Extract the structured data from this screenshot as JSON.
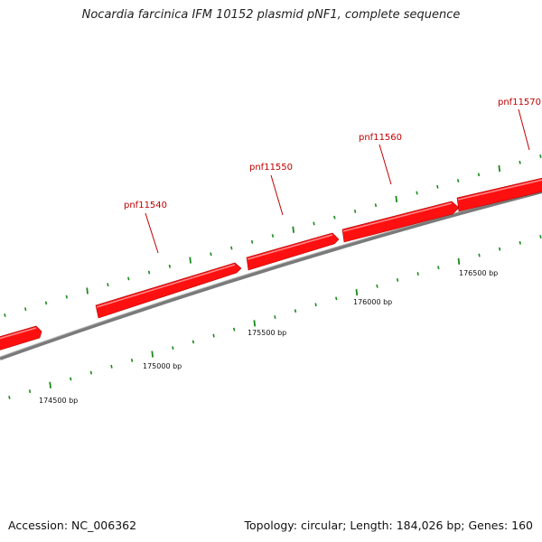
{
  "title": "Nocardia farcinica IFM 10152 plasmid pNF1, complete sequence",
  "genes": [
    {
      "label": "pnf11540"
    },
    {
      "label": "pnf11550"
    },
    {
      "label": "pnf11560"
    },
    {
      "label": "pnf11570"
    }
  ],
  "scale_labels": [
    "174500 bp",
    "175000 bp",
    "175500 bp",
    "176000 bp",
    "176500 bp"
  ],
  "footer": {
    "accession": "Accession: NC_006362",
    "summary": "Topology: circular; Length: 184,026 bp; Genes: 160"
  },
  "colors": {
    "gene": "#ff0000",
    "gene_dark": "#b00000",
    "backbone": "#808080",
    "ticks": "#1a8a1a",
    "label": "#c00000"
  }
}
